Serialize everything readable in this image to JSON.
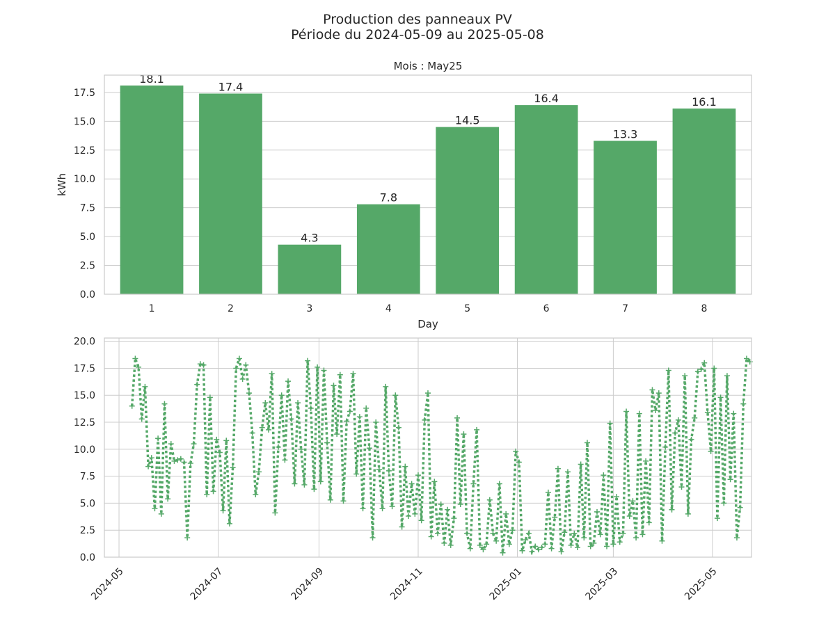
{
  "figure": {
    "title_line1": "Production des panneaux PV",
    "title_line2": "Période du 2024-05-09 au 2025-05-08"
  },
  "colors": {
    "series": "#55a868",
    "grid": "#cccccc",
    "axes_edge": "#cccccc",
    "text": "#262626"
  },
  "chart_data": [
    {
      "type": "bar",
      "title": "Mois : May25",
      "xlabel": "Day",
      "ylabel": "kWh",
      "categories": [
        "1",
        "2",
        "3",
        "4",
        "5",
        "6",
        "7",
        "8"
      ],
      "values": [
        18.1,
        17.4,
        4.3,
        7.8,
        14.5,
        16.4,
        13.3,
        16.1
      ],
      "data_labels": [
        "18.1",
        "17.4",
        "4.3",
        "7.8",
        "14.5",
        "16.4",
        "13.3",
        "16.1"
      ],
      "ylim": [
        0,
        19.0
      ],
      "yticks": [
        0.0,
        2.5,
        5.0,
        7.5,
        10.0,
        12.5,
        15.0,
        17.5
      ],
      "ytick_labels": [
        "0.0",
        "2.5",
        "5.0",
        "7.5",
        "10.0",
        "12.5",
        "15.0",
        "17.5"
      ],
      "grid": "horizontal",
      "color": "#55a868"
    },
    {
      "type": "line",
      "title": "",
      "xlabel": "",
      "ylabel": "",
      "line_style": "dotted",
      "marker": "+",
      "color": "#55a868",
      "xlim": [
        "2024-04-22",
        "2025-05-25"
      ],
      "ylim": [
        0,
        20.3
      ],
      "xticks": [
        "2024-05-01",
        "2024-07-01",
        "2024-09-01",
        "2024-11-01",
        "2025-01-01",
        "2025-03-01",
        "2025-05-01"
      ],
      "xtick_labels": [
        "2024-05",
        "2024-07",
        "2024-09",
        "2024-11",
        "2025-01",
        "2025-03",
        "2025-05"
      ],
      "yticks": [
        0.0,
        2.5,
        5.0,
        7.5,
        10.0,
        12.5,
        15.0,
        17.5,
        20.0
      ],
      "ytick_labels": [
        "0.0",
        "2.5",
        "5.0",
        "7.5",
        "10.0",
        "12.5",
        "15.0",
        "17.5",
        "20.0"
      ],
      "grid": "both",
      "start_date": "2024-05-09",
      "values": [
        14.0,
        18.4,
        17.6,
        12.8,
        15.8,
        8.4,
        9.2,
        4.5,
        11.0,
        4.0,
        14.2,
        5.4,
        10.5,
        8.9,
        9.0,
        9.1,
        8.8,
        1.8,
        8.7,
        10.5,
        16.0,
        17.9,
        17.8,
        5.8,
        14.8,
        6.1,
        10.9,
        9.7,
        4.3,
        10.8,
        3.1,
        8.3,
        17.5,
        18.4,
        16.5,
        17.8,
        15.2,
        11.5,
        5.8,
        7.9,
        12.0,
        14.3,
        11.8,
        17.0,
        4.1,
        10.2,
        15.0,
        9.0,
        16.3,
        12.8,
        6.8,
        14.3,
        10.0,
        6.7,
        18.2,
        13.8,
        6.3,
        17.6,
        7.0,
        17.3,
        10.6,
        5.3,
        15.9,
        11.4,
        16.9,
        5.2,
        12.6,
        13.5,
        17.0,
        7.7,
        13.0,
        4.5,
        13.8,
        10.1,
        1.8,
        12.5,
        8.1,
        4.5,
        15.8,
        8.0,
        4.7,
        15.0,
        12.0,
        2.8,
        8.4,
        3.8,
        6.8,
        4.0,
        7.6,
        3.4,
        12.7,
        15.2,
        1.9,
        7.0,
        2.2,
        4.9,
        1.3,
        4.4,
        1.1,
        3.6,
        12.9,
        4.9,
        11.4,
        2.2,
        0.8,
        6.8,
        11.8,
        1.1,
        0.7,
        1.2,
        5.3,
        2.2,
        1.5,
        6.8,
        0.4,
        4.0,
        1.2,
        2.5,
        9.8,
        8.8,
        0.6,
        1.6,
        2.2,
        0.5,
        1.0,
        0.7,
        0.9,
        1.2,
        6.0,
        0.8,
        3.7,
        8.2,
        0.5,
        2.3,
        7.9,
        1.1,
        2.2,
        0.9,
        8.6,
        1.8,
        10.6,
        1.0,
        1.3,
        4.2,
        2.1,
        7.6,
        1.0,
        12.4,
        1.2,
        5.6,
        1.4,
        2.2,
        13.5,
        3.8,
        5.2,
        1.8,
        13.3,
        2.1,
        8.9,
        3.2,
        15.5,
        13.6,
        15.2,
        1.5,
        10.2,
        17.3,
        4.4,
        11.5,
        12.7,
        6.5,
        16.8,
        4.0,
        10.9,
        12.9,
        17.2,
        17.4,
        18.0,
        13.4,
        9.8,
        17.5,
        3.6,
        14.8,
        5.0,
        16.8,
        7.2,
        13.3,
        1.8,
        4.6,
        14.2,
        18.4,
        18.1
      ]
    }
  ]
}
